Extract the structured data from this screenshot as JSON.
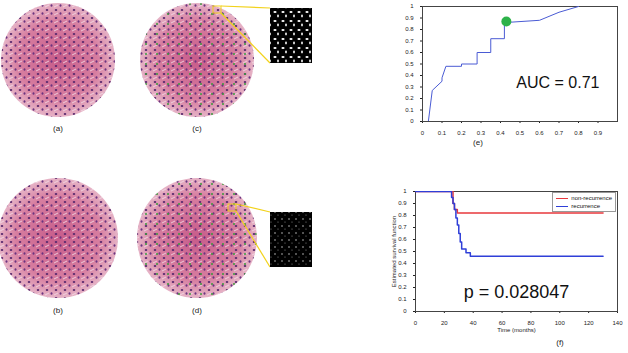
{
  "image_labels": [
    "(a)",
    "(b)",
    "(c)",
    "(d)"
  ],
  "chart_data": [
    {
      "type": "line",
      "panel_label": "(e)",
      "xlim": [
        0,
        1
      ],
      "ylim": [
        0,
        1
      ],
      "xticks": [
        0,
        0.1,
        0.2,
        0.3,
        0.4,
        0.5,
        0.6,
        0.7,
        0.8,
        0.9
      ],
      "yticks": [
        0,
        0.1,
        0.2,
        0.3,
        0.4,
        0.5,
        0.6,
        0.7,
        0.8,
        0.9,
        1
      ],
      "color": "#4a5bd4",
      "x": [
        0.03,
        0.05,
        0.1,
        0.1,
        0.12,
        0.2,
        0.2,
        0.28,
        0.28,
        0.35,
        0.35,
        0.42,
        0.42,
        0.6,
        0.7,
        0.8
      ],
      "values": [
        0,
        0.27,
        0.35,
        0.38,
        0.48,
        0.48,
        0.5,
        0.5,
        0.6,
        0.6,
        0.72,
        0.72,
        0.86,
        0.88,
        0.95,
        1
      ],
      "highlight": {
        "x": 0.43,
        "y": 0.87,
        "color": "#2db24a"
      },
      "annotation": "AUC = 0.71"
    },
    {
      "type": "line",
      "panel_label": "(f)",
      "line_style": "step",
      "xlabel": "Time (months)",
      "ylabel": "Estimated survival function",
      "xlim": [
        0,
        140
      ],
      "ylim": [
        0,
        1
      ],
      "xticks": [
        0,
        20,
        40,
        60,
        80,
        100,
        120,
        140
      ],
      "yticks": [
        0,
        0.1,
        0.2,
        0.3,
        0.4,
        0.5,
        0.6,
        0.7,
        0.8,
        0.9,
        1
      ],
      "legend": "top-right",
      "series": [
        {
          "name": "non-recurrence",
          "color": "#e8383d",
          "x": [
            0,
            26,
            27,
            29,
            130
          ],
          "values": [
            1,
            0.9,
            0.85,
            0.82,
            0.82
          ]
        },
        {
          "name": "recurrence",
          "color": "#2f3fd8",
          "x": [
            0,
            25,
            26,
            27,
            28,
            29,
            30,
            31,
            32,
            35,
            38,
            130
          ],
          "values": [
            1,
            0.95,
            0.9,
            0.85,
            0.78,
            0.72,
            0.65,
            0.58,
            0.52,
            0.49,
            0.46,
            0.46
          ]
        }
      ],
      "annotation": "p = 0.028047"
    }
  ]
}
